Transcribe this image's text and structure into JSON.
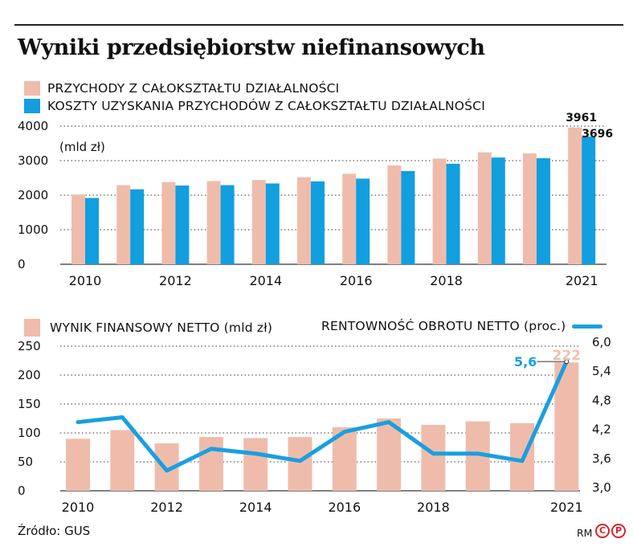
{
  "title": "Wyniki przedsiębiorstw niefinansowych",
  "colors": {
    "revenue": "#efbcac",
    "costs": "#119fdf",
    "netResult": "#efbcac",
    "margin": "#1a9fe0",
    "peakLabel": "#f1bfae"
  },
  "chart_data": [
    {
      "type": "bar",
      "legend": [
        "PRZYCHODY Z CAŁOKSZTAŁTU DZIAŁALNOŚCI",
        "KOSZTY UZYSKANIA PRZYCHODÓW Z CAŁOKSZTAŁTU DZIAŁALNOŚCI"
      ],
      "unit_label": "(mld zł)",
      "categories": [
        "2010",
        "2011",
        "2012",
        "2013",
        "2014",
        "2015",
        "2016",
        "2017",
        "2018",
        "2019",
        "2020",
        "2021"
      ],
      "x_tick_labels": [
        "2010",
        "",
        "2012",
        "",
        "2014",
        "",
        "2016",
        "",
        "2018",
        "",
        "",
        "2021"
      ],
      "series": [
        {
          "name": "PRZYCHODY Z CAŁOKSZTAŁTU DZIAŁALNOŚCI",
          "values": [
            2020,
            2290,
            2380,
            2410,
            2440,
            2520,
            2620,
            2860,
            3060,
            3240,
            3210,
            3961
          ]
        },
        {
          "name": "KOSZTY UZYSKANIA PRZYCHODÓW Z CAŁOKSZTAŁTU DZIAŁALNOŚCI",
          "values": [
            1920,
            2170,
            2280,
            2290,
            2340,
            2400,
            2480,
            2700,
            2910,
            3090,
            3070,
            3696
          ]
        }
      ],
      "data_labels": [
        "3961",
        "3696"
      ],
      "y_ticks": [
        "0",
        "1000",
        "2000",
        "3000",
        "4000"
      ],
      "ylim": [
        0,
        4100
      ],
      "grid": true
    },
    {
      "type": "bar+line",
      "legend": [
        "WYNIK FINANSOWY NETTO (mld zł)",
        "RENTOWNOŚĆ OBROTU NETTO (proc.)"
      ],
      "categories": [
        "2010",
        "2011",
        "2012",
        "2013",
        "2014",
        "2015",
        "2016",
        "2017",
        "2018",
        "2019",
        "2020",
        "2021"
      ],
      "x_tick_labels": [
        "2010",
        "",
        "2012",
        "",
        "2014",
        "",
        "2016",
        "",
        "2018",
        "",
        "",
        "2021"
      ],
      "series": [
        {
          "name": "WYNIK FINANSOWY NETTO (mld zł)",
          "axis": "left",
          "values": [
            90,
            105,
            82,
            93,
            91,
            93,
            110,
            125,
            114,
            120,
            117,
            222
          ]
        },
        {
          "name": "RENTOWNOŚĆ OBROTU NETTO (proc.)",
          "axis": "right",
          "values": [
            4.35,
            4.45,
            3.35,
            3.8,
            3.7,
            3.55,
            4.15,
            4.35,
            3.7,
            3.7,
            3.55,
            5.6
          ]
        }
      ],
      "data_labels": [
        "222",
        "5,6"
      ],
      "y_left_ticks": [
        "0",
        "50",
        "100",
        "150",
        "200",
        "250"
      ],
      "ylim_left": [
        0,
        250
      ],
      "y_right_ticks": [
        "3,0",
        "3,6",
        "4,2",
        "4,8",
        "5,4",
        "6,0"
      ],
      "ylim_right": [
        3.0,
        6.0
      ],
      "grid": true
    }
  ],
  "footer": {
    "source": "Źródło: GUS",
    "author": "RM",
    "logo": [
      "C",
      "P"
    ]
  }
}
